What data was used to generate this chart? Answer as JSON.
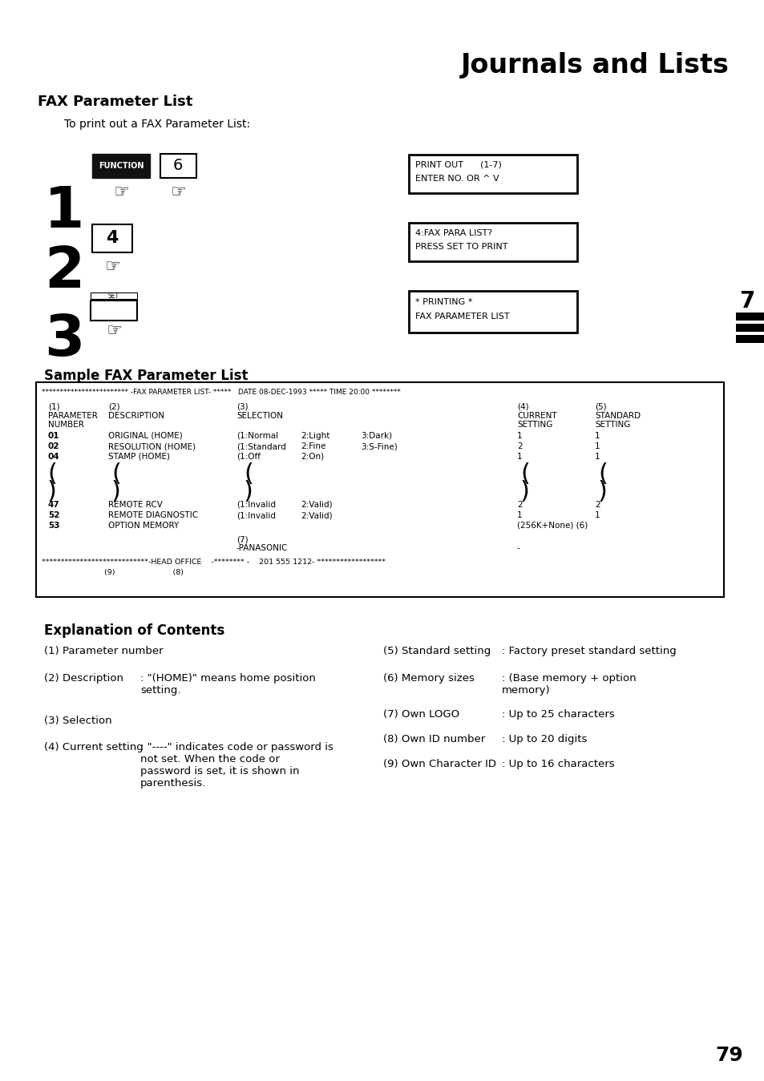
{
  "title": "Journals and Lists",
  "section_title": "FAX Parameter List",
  "subtitle": "To print out a FAX Parameter List:",
  "display1_line1": "PRINT OUT      (1-7)",
  "display1_line2": "ENTER NO. OR ^ V",
  "display2_line1": "4:FAX PARA LIST?",
  "display2_line2": "PRESS SET TO PRINT",
  "display3_line1": "* PRINTING *",
  "display3_line2": "FAX PARAMETER LIST",
  "sample_title": "Sample FAX Parameter List",
  "expl_title": "Explanation of Contents",
  "page_num": "79",
  "bg_color": "#ffffff"
}
